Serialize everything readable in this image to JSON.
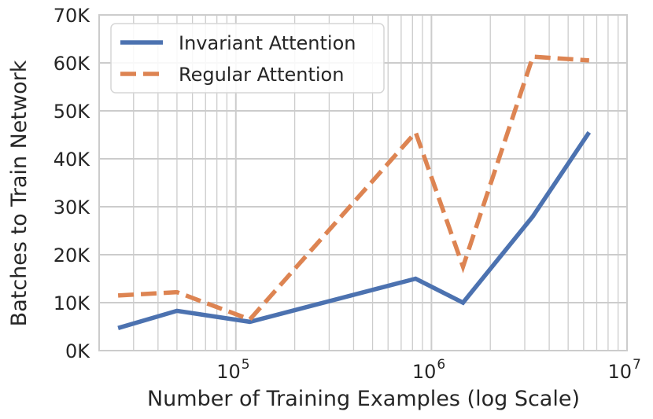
{
  "chart_data": {
    "type": "line",
    "xlabel": "Number of Training Examples (log Scale)",
    "ylabel": "Batches to Train Network",
    "x_scale": "log",
    "xlim": [
      20000,
      10000000
    ],
    "ylim": [
      0,
      70000
    ],
    "x_ticks": [
      {
        "value": 100000,
        "base": "10",
        "exp": "5"
      },
      {
        "value": 1000000,
        "base": "10",
        "exp": "6"
      },
      {
        "value": 10000000,
        "base": "10",
        "exp": "7"
      }
    ],
    "y_ticks": [
      {
        "value": 0,
        "label": "0K"
      },
      {
        "value": 10000,
        "label": "10K"
      },
      {
        "value": 20000,
        "label": "20K"
      },
      {
        "value": 30000,
        "label": "30K"
      },
      {
        "value": 40000,
        "label": "40K"
      },
      {
        "value": 50000,
        "label": "50K"
      },
      {
        "value": 60000,
        "label": "60K"
      },
      {
        "value": 70000,
        "label": "70K"
      }
    ],
    "grid": true,
    "legend_position": "top-left",
    "series": [
      {
        "name": "Invariant Attention",
        "color": "#4c72b0",
        "dash": "solid",
        "x": [
          25000,
          50000,
          118000,
          830000,
          1450000,
          3300000,
          6400000
        ],
        "y": [
          4700,
          8300,
          6000,
          15000,
          10000,
          28000,
          45500
        ]
      },
      {
        "name": "Regular Attention",
        "color": "#dd8452",
        "dash": "dashed",
        "x": [
          25000,
          50000,
          118000,
          830000,
          1450000,
          3300000,
          6400000
        ],
        "y": [
          11500,
          12200,
          6500,
          45500,
          17500,
          61300,
          60500
        ]
      }
    ]
  }
}
